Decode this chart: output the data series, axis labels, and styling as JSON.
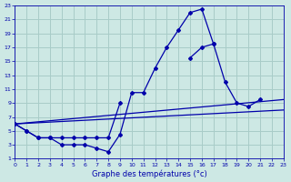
{
  "title": "Graphe des températures (°c)",
  "bg_color": "#cde8e4",
  "grid_color": "#a8ccc8",
  "line_color": "#0000aa",
  "xlim": [
    0,
    23
  ],
  "ylim": [
    1,
    23
  ],
  "xticks": [
    0,
    1,
    2,
    3,
    4,
    5,
    6,
    7,
    8,
    9,
    10,
    11,
    12,
    13,
    14,
    15,
    16,
    17,
    18,
    19,
    20,
    21,
    22,
    23
  ],
  "yticks": [
    1,
    3,
    5,
    7,
    9,
    11,
    13,
    15,
    17,
    19,
    21,
    23
  ],
  "line1_x": [
    0,
    1,
    2,
    3,
    4,
    5,
    6,
    7,
    8,
    9,
    10,
    11,
    12,
    13,
    14,
    15,
    16,
    17
  ],
  "line1_y": [
    6,
    5,
    4,
    4,
    3,
    3,
    3,
    2.5,
    2,
    4.5,
    10.5,
    10.5,
    14,
    17,
    19.5,
    22,
    22.5,
    17.5
  ],
  "line2_x": [
    0,
    1,
    2,
    3,
    4,
    5,
    6,
    7,
    8,
    9
  ],
  "line2_y": [
    6,
    5,
    4,
    4,
    4,
    4,
    4,
    4,
    4,
    9
  ],
  "line2b_x": [
    15,
    16,
    17,
    18,
    19,
    20,
    21
  ],
  "line2b_y": [
    15.5,
    17,
    17.5,
    12,
    9,
    8.5,
    9.5
  ],
  "line3_x": [
    0,
    23
  ],
  "line3_y": [
    6.0,
    9.5
  ],
  "line4_x": [
    0,
    23
  ],
  "line4_y": [
    6.0,
    8.0
  ],
  "tick_fontsize": 4.5,
  "xlabel_fontsize": 6.0,
  "lw": 0.9,
  "ms": 2.0
}
